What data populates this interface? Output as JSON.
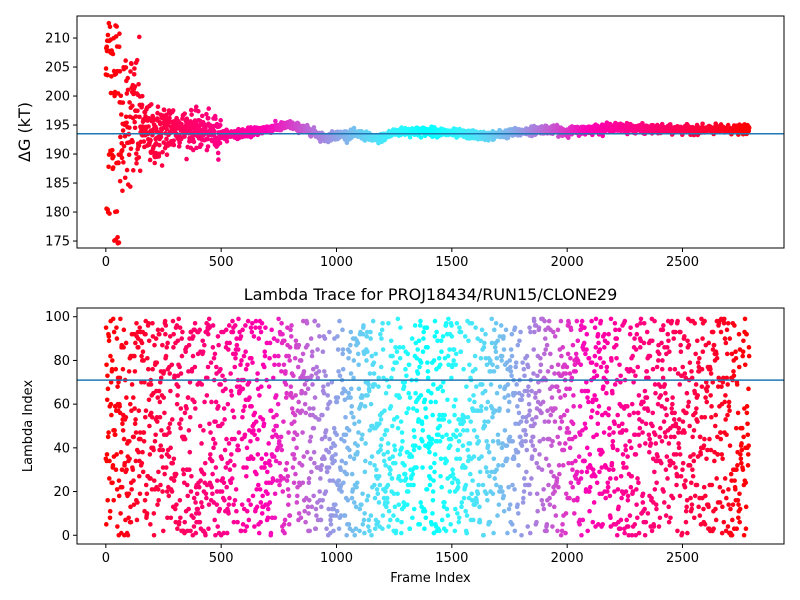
{
  "chart_data": [
    {
      "type": "scatter",
      "title": "",
      "xlabel": "",
      "ylabel": "ΔG (kT)",
      "xlim": [
        -125,
        2940
      ],
      "ylim": [
        173.8,
        213.8
      ],
      "xticks": [
        0,
        500,
        1000,
        1500,
        2000,
        2500
      ],
      "yticks": [
        175,
        180,
        185,
        190,
        195,
        200,
        205,
        210
      ],
      "colormap": "rainbow",
      "point_count": 2790,
      "reference_line": {
        "y": 193.5,
        "color": "#1f77b4"
      },
      "series_samples": {
        "x": [
          20,
          30,
          40,
          60,
          100,
          150,
          200,
          300,
          400,
          500,
          600,
          700,
          800,
          900,
          950,
          1000,
          1100,
          1175,
          1250,
          1300,
          1400,
          1500,
          1650,
          1800,
          1900,
          2000,
          2200,
          2400,
          2600,
          2790
        ],
        "y": [
          190,
          200,
          188,
          195,
          197,
          195,
          193,
          194.7,
          194,
          193.3,
          193.6,
          194.3,
          195,
          193.8,
          192.7,
          193.3,
          193.4,
          192.5,
          193.7,
          193.9,
          193.9,
          193.6,
          193.1,
          193.8,
          194.3,
          193.9,
          194.6,
          194.2,
          194.2,
          194.2
        ]
      }
    },
    {
      "type": "scatter",
      "title": "Lambda Trace for PROJ18434/RUN15/CLONE29",
      "xlabel": "Frame Index",
      "ylabel": "Lambda Index",
      "xlim": [
        -125,
        2940
      ],
      "ylim": [
        -4,
        104
      ],
      "xticks": [
        0,
        500,
        1000,
        1500,
        2000,
        2500
      ],
      "yticks": [
        0,
        20,
        40,
        60,
        80,
        100
      ],
      "colormap": "rainbow",
      "point_count": 2790,
      "value_range": [
        0,
        99
      ],
      "reference_line": {
        "y": 71,
        "color": "#1f77b4"
      }
    }
  ],
  "colors": {
    "line": "#1f77b4",
    "axes": "#000000",
    "background": "#ffffff"
  }
}
